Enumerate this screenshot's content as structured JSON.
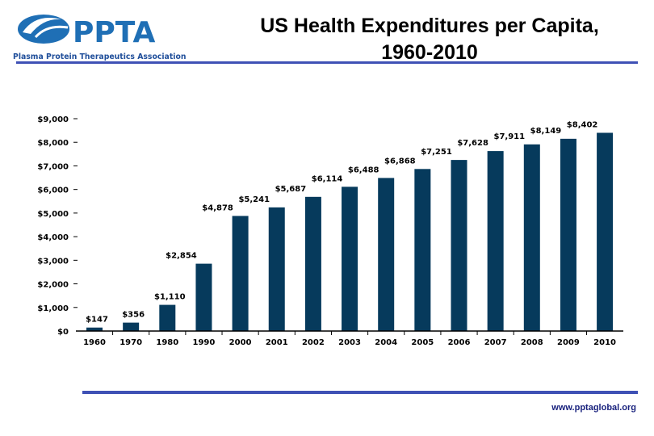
{
  "header": {
    "logo_text": "PPTA",
    "logo_subtitle": "Plasma Protein Therapeutics Association",
    "title_line1": "US Health Expenditures per Capita,",
    "title_line2": "1960-2010"
  },
  "footer": {
    "url": "www.pptaglobal.org"
  },
  "colors": {
    "bar": "#063a5c",
    "rule": "#3f51b5",
    "logo": "#1f6fb5",
    "logo_teal": "#2aa8b8"
  },
  "chart_data": {
    "type": "bar",
    "title": "US Health Expenditures per Capita, 1960-2010",
    "categories": [
      "1960",
      "1970",
      "1980",
      "1990",
      "2000",
      "2001",
      "2002",
      "2003",
      "2004",
      "2005",
      "2006",
      "2007",
      "2008",
      "2009",
      "2010"
    ],
    "values": [
      147,
      356,
      1110,
      2854,
      4878,
      5241,
      5687,
      6114,
      6488,
      6868,
      7251,
      7628,
      7911,
      8149,
      8402
    ],
    "data_labels": [
      "$147",
      "$356",
      "$1,110",
      "$2,854",
      "$4,878",
      "$5,241",
      "$5,687",
      "$6,114",
      "$6,488",
      "$6,868",
      "$7,251",
      "$7,628",
      "$7,911",
      "$8,149",
      "$8,402"
    ],
    "yticks": [
      0,
      1000,
      2000,
      3000,
      4000,
      5000,
      6000,
      7000,
      8000,
      9000
    ],
    "ytick_labels": [
      "$0",
      "$1,000",
      "$2,000",
      "$3,000",
      "$4,000",
      "$5,000",
      "$6,000",
      "$7,000",
      "$8,000",
      "$9,000"
    ],
    "ylim": [
      0,
      9000
    ],
    "xlabel": "",
    "ylabel": "",
    "grid": false,
    "legend": "none"
  }
}
